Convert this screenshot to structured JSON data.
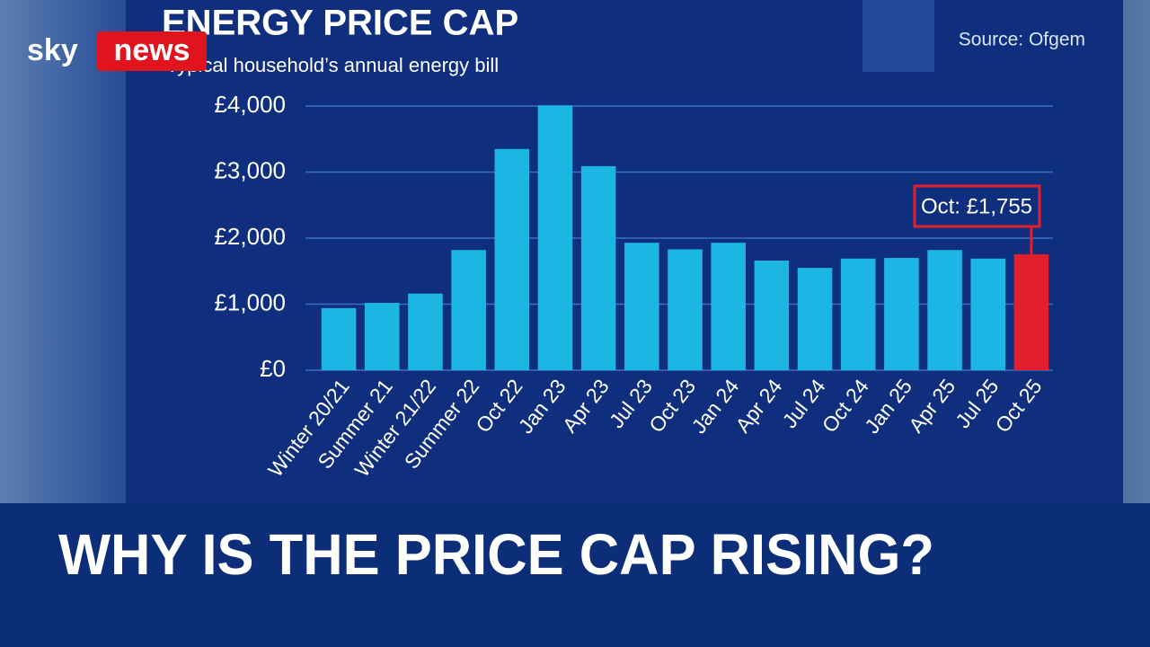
{
  "logo": {
    "sky": "sky",
    "news": "news"
  },
  "headline": "WHY IS THE PRICE CAP RISING?",
  "chart_data": {
    "type": "bar",
    "title": "ENERGY PRICE CAP",
    "subtitle": "Typical household’s annual energy bill",
    "source": "Source: Ofgem",
    "annotation": "Oct: £1,755",
    "categories": [
      "Winter 20/21",
      "Summer 21",
      "Winter 21/22",
      "Summer 22",
      "Oct 22",
      "Jan 23",
      "Apr 23",
      "Jul 23",
      "Oct 23",
      "Jan 24",
      "Apr 24",
      "Jul 24",
      "Oct 24",
      "Jan 25",
      "Apr 25",
      "Jul 25",
      "Oct 25"
    ],
    "values": [
      940,
      1020,
      1160,
      1820,
      3350,
      4010,
      3090,
      1930,
      1830,
      1930,
      1660,
      1550,
      1690,
      1700,
      1820,
      1690,
      1755
    ],
    "colors": [
      "#1cb6e4",
      "#1cb6e4",
      "#1cb6e4",
      "#1cb6e4",
      "#1cb6e4",
      "#1cb6e4",
      "#1cb6e4",
      "#1cb6e4",
      "#1cb6e4",
      "#1cb6e4",
      "#1cb6e4",
      "#1cb6e4",
      "#1cb6e4",
      "#1cb6e4",
      "#1cb6e4",
      "#1cb6e4",
      "#e2202c"
    ],
    "ylim": [
      0,
      4000
    ],
    "yticks": [
      {
        "value": 0,
        "label": "£0"
      },
      {
        "value": 1000,
        "label": "£1,000"
      },
      {
        "value": 2000,
        "label": "£2,000"
      },
      {
        "value": 3000,
        "label": "£3,000"
      },
      {
        "value": 4000,
        "label": "£4,000"
      }
    ],
    "grid": true
  }
}
